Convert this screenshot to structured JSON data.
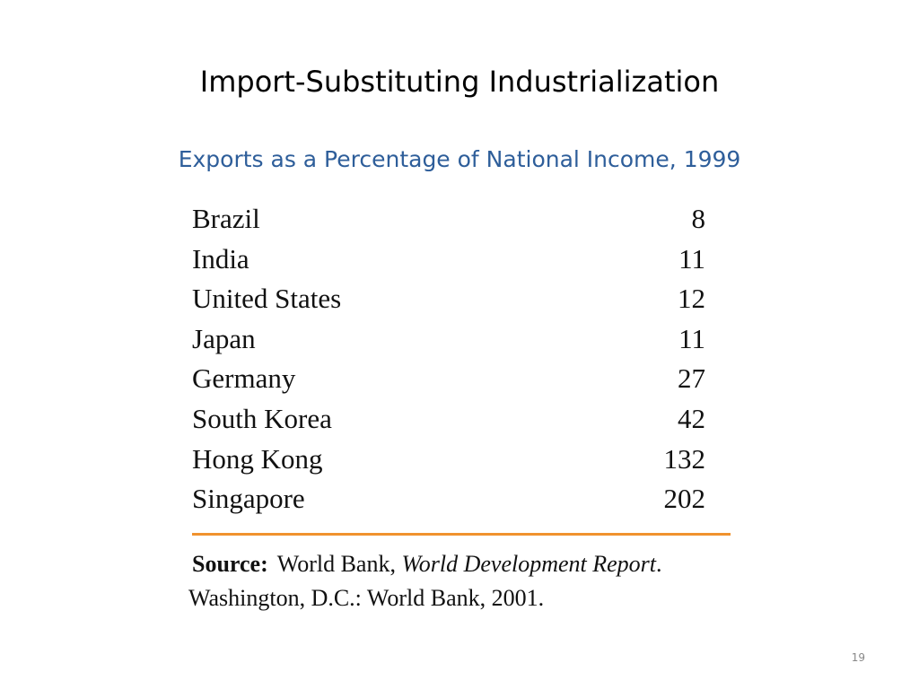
{
  "slide": {
    "title": "Import-Substituting Industrialization",
    "subtitle": "Exports as a Percentage of National Income, 1999",
    "subtitle_color": "#2E5E9A",
    "rule_color": "#F0922E",
    "page_number": "19"
  },
  "table": {
    "rows": [
      {
        "country": "Brazil",
        "value": "8"
      },
      {
        "country": "India",
        "value": "11"
      },
      {
        "country": "United States",
        "value": "12"
      },
      {
        "country": "Japan",
        "value": "11"
      },
      {
        "country": "Germany",
        "value": "27"
      },
      {
        "country": "South Korea",
        "value": "42"
      },
      {
        "country": "Hong Kong",
        "value": "132"
      },
      {
        "country": "Singapore",
        "value": "202"
      }
    ]
  },
  "source": {
    "label": "Source:",
    "publisher": "World Bank,",
    "report": "World Development Report",
    "line2": "Washington, D.C.: World Bank, 2001."
  }
}
